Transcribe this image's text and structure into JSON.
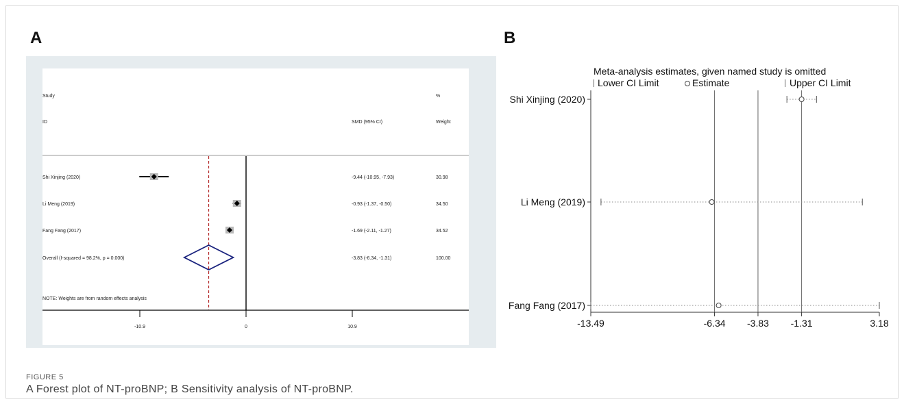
{
  "panels": {
    "a_letter": "A",
    "b_letter": "B"
  },
  "caption": {
    "title": "FIGURE 5",
    "text": "A Forest plot of NT-proBNP; B Sensitivity analysis of NT-proBNP."
  },
  "chart_data": [
    {
      "type": "scatter",
      "subtype": "forest",
      "header": {
        "study": "Study",
        "id": "ID",
        "smd": "SMD (95% CI)",
        "pct": "%",
        "weight": "Weight"
      },
      "studies": [
        {
          "name": "Shi Xinjing (2020)",
          "smd": -9.44,
          "lower": -10.95,
          "upper": -7.93,
          "label": "-9.44 (-10.95, -7.93)",
          "weight": "30.98"
        },
        {
          "name": "Li Meng  (2019)",
          "smd": -0.93,
          "lower": -1.37,
          "upper": -0.5,
          "label": "-0.93 (-1.37, -0.50)",
          "weight": "34.50"
        },
        {
          "name": "Fang Fang  (2017)",
          "smd": -1.69,
          "lower": -2.11,
          "upper": -1.27,
          "label": "-1.69 (-2.11, -1.27)",
          "weight": "34.52"
        }
      ],
      "overall": {
        "name": "Overall  (I-squared = 98.2%, p = 0.000)",
        "smd": -3.83,
        "lower": -6.34,
        "upper": -1.31,
        "label": "-3.83 (-6.34, -1.31)",
        "weight": "100.00"
      },
      "note": "NOTE: Weights are from random effects analysis",
      "x_ticks": [
        "-10.9",
        "0",
        "10.9"
      ],
      "xlim": [
        -20.4,
        20.4
      ],
      "null_line": 0,
      "pooled_line": -3.83
    },
    {
      "type": "scatter",
      "subtype": "sensitivity",
      "title": "Meta-analysis estimates, given named study is omitted",
      "legend": [
        "Lower CI Limit",
        "Estimate",
        "Upper CI Limit"
      ],
      "studies": [
        {
          "name": "Shi Xinjing (2020)",
          "lower": -2.16,
          "estimate": -1.31,
          "upper": -0.45
        },
        {
          "name": "Li Meng  (2019)",
          "lower": -12.9,
          "estimate": -6.5,
          "upper": 2.2
        },
        {
          "name": "Fang Fang  (2017)",
          "lower": -13.49,
          "estimate": -6.1,
          "upper": 3.18
        }
      ],
      "x_ticks": [
        "-13.49",
        "-6.34",
        "-3.83",
        "-1.31",
        "3.18"
      ],
      "x_tick_values": [
        -13.49,
        -6.34,
        -3.83,
        -1.31,
        3.18
      ],
      "reference_lines": [
        -6.34,
        -3.83,
        -1.31
      ],
      "xlim": [
        -13.49,
        3.18
      ]
    }
  ]
}
